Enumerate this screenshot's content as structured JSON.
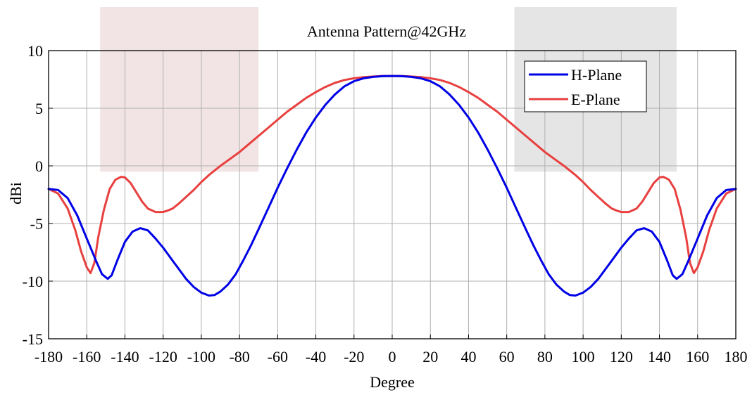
{
  "chart_data": {
    "type": "line",
    "title": "Antenna Pattern@42GHz",
    "xlabel": "Degree",
    "ylabel": "dBi",
    "xlim": [
      -180,
      180
    ],
    "ylim": [
      -15,
      10
    ],
    "xticks": [
      -180,
      -160,
      -140,
      -120,
      -100,
      -80,
      -60,
      -40,
      -20,
      0,
      20,
      40,
      60,
      80,
      100,
      120,
      140,
      160,
      180
    ],
    "yticks": [
      10,
      5,
      0,
      -5,
      -10,
      -15
    ],
    "grid": true,
    "legend_position": "top-right",
    "shaded_regions": [
      {
        "x": [
          -153,
          -70
        ],
        "y": [
          -0.5,
          10
        ],
        "color": "#f2e4e4"
      },
      {
        "x": [
          64,
          149
        ],
        "y": [
          -0.5,
          10
        ],
        "color": "#e5e5e5"
      }
    ],
    "series": [
      {
        "name": "H-Plane",
        "color": "#0000e6",
        "x": [
          -180,
          -175,
          -170,
          -165,
          -160,
          -155,
          -152,
          -149,
          -147,
          -144,
          -140,
          -136,
          -132,
          -128,
          -124,
          -120,
          -116,
          -112,
          -108,
          -104,
          -100,
          -96,
          -93,
          -90,
          -86,
          -82,
          -78,
          -74,
          -70,
          -65,
          -60,
          -55,
          -50,
          -45,
          -40,
          -35,
          -30,
          -25,
          -20,
          -15,
          -10,
          -5,
          0,
          5,
          10,
          15,
          20,
          25,
          30,
          35,
          40,
          45,
          50,
          55,
          60,
          65,
          70,
          74,
          78,
          82,
          86,
          90,
          93,
          96,
          100,
          104,
          108,
          112,
          116,
          120,
          124,
          128,
          132,
          136,
          140,
          144,
          147,
          149,
          152,
          155,
          160,
          165,
          170,
          175,
          180
        ],
        "y": [
          -2.0,
          -2.1,
          -2.8,
          -4.3,
          -6.3,
          -8.3,
          -9.4,
          -9.8,
          -9.5,
          -8.2,
          -6.6,
          -5.7,
          -5.4,
          -5.6,
          -6.3,
          -7.1,
          -8.0,
          -8.9,
          -9.8,
          -10.5,
          -11.0,
          -11.25,
          -11.2,
          -10.9,
          -10.3,
          -9.4,
          -8.2,
          -6.9,
          -5.5,
          -3.7,
          -1.9,
          -0.2,
          1.4,
          2.9,
          4.2,
          5.3,
          6.2,
          6.9,
          7.35,
          7.6,
          7.72,
          7.78,
          7.8,
          7.78,
          7.72,
          7.6,
          7.35,
          6.9,
          6.2,
          5.3,
          4.2,
          2.9,
          1.4,
          -0.2,
          -1.9,
          -3.7,
          -5.5,
          -6.9,
          -8.2,
          -9.4,
          -10.3,
          -10.9,
          -11.2,
          -11.25,
          -11.0,
          -10.5,
          -9.8,
          -8.9,
          -8.0,
          -7.1,
          -6.3,
          -5.6,
          -5.4,
          -5.7,
          -6.6,
          -8.2,
          -9.5,
          -9.8,
          -9.4,
          -8.3,
          -6.3,
          -4.3,
          -2.8,
          -2.1,
          -2.0
        ]
      },
      {
        "name": "E-Plane",
        "color": "#e8403f",
        "x": [
          -180,
          -175,
          -170,
          -166,
          -163,
          -160,
          -158,
          -156,
          -154,
          -151,
          -148,
          -145,
          -142,
          -140,
          -137,
          -134,
          -131,
          -128,
          -124,
          -120,
          -118,
          -115,
          -112,
          -108,
          -104,
          -100,
          -96,
          -90,
          -85,
          -80,
          -75,
          -70,
          -65,
          -60,
          -55,
          -50,
          -45,
          -40,
          -35,
          -30,
          -25,
          -20,
          -15,
          -10,
          -5,
          0,
          5,
          10,
          15,
          20,
          25,
          30,
          35,
          40,
          45,
          50,
          55,
          60,
          65,
          70,
          75,
          80,
          85,
          90,
          96,
          100,
          104,
          108,
          112,
          115,
          118,
          120,
          124,
          128,
          131,
          134,
          137,
          140,
          142,
          145,
          148,
          151,
          154,
          156,
          158,
          160,
          163,
          166,
          170,
          175,
          180
        ],
        "y": [
          -2.0,
          -2.4,
          -3.7,
          -5.6,
          -7.4,
          -8.8,
          -9.3,
          -8.4,
          -6.2,
          -3.8,
          -2.0,
          -1.2,
          -0.95,
          -1.0,
          -1.5,
          -2.3,
          -3.1,
          -3.7,
          -4.0,
          -4.0,
          -3.9,
          -3.7,
          -3.3,
          -2.7,
          -2.1,
          -1.4,
          -0.8,
          0.0,
          0.6,
          1.2,
          1.9,
          2.6,
          3.3,
          4.0,
          4.7,
          5.3,
          5.9,
          6.4,
          6.85,
          7.2,
          7.45,
          7.6,
          7.7,
          7.75,
          7.8,
          7.8,
          7.8,
          7.75,
          7.7,
          7.6,
          7.45,
          7.2,
          6.85,
          6.4,
          5.9,
          5.3,
          4.7,
          4.0,
          3.3,
          2.6,
          1.9,
          1.2,
          0.6,
          0.0,
          -0.8,
          -1.4,
          -2.1,
          -2.7,
          -3.3,
          -3.7,
          -3.9,
          -4.0,
          -4.0,
          -3.7,
          -3.1,
          -2.3,
          -1.5,
          -1.0,
          -0.95,
          -1.2,
          -2.0,
          -3.8,
          -6.2,
          -8.4,
          -9.3,
          -8.8,
          -7.4,
          -5.6,
          -3.7,
          -2.4,
          -2.0
        ]
      }
    ]
  }
}
